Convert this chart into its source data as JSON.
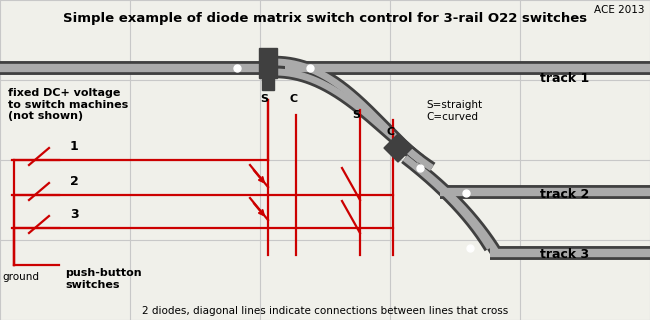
{
  "title": "Simple example of diode matrix switch control for 3-rail O22 switches",
  "watermark": "ACE 2013",
  "bg_color": "#f0f0ea",
  "grid_color": "#c8c8c8",
  "track_dark": "#404040",
  "track_mid": "#888888",
  "track_light": "#aaaaaa",
  "red": "#cc0000",
  "label_track1": "track 1",
  "label_track2": "track 2",
  "label_track3": "track 3",
  "label_ground": "ground",
  "label_pb": "push-button\nswitches",
  "label_fixed": "fixed DC+ voltage\nto switch machines\n(not shown)",
  "label_sc": "S=straight\nC=curved",
  "label_bottom": "2 diodes, diagonal lines indicate connections between lines that cross",
  "figsize": [
    6.5,
    3.2
  ],
  "dpi": 100
}
